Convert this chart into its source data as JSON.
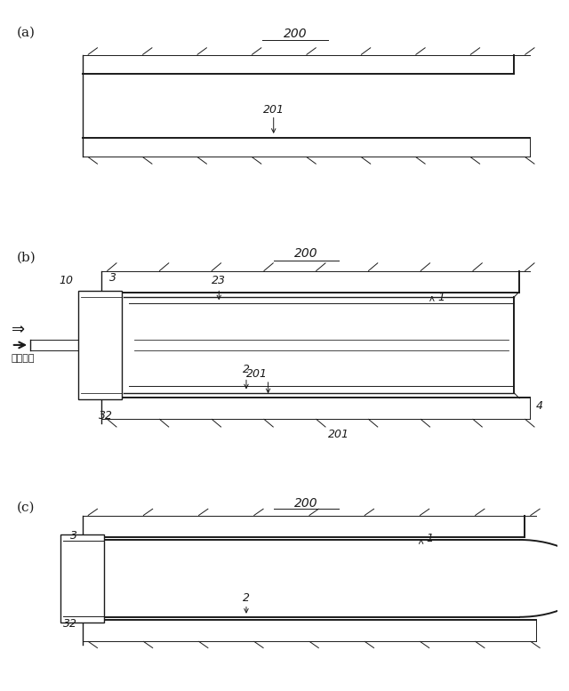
{
  "bg_color": "#ffffff",
  "line_color": "#1a1a1a",
  "fig_width": 6.4,
  "fig_height": 7.77,
  "panel_a_label": "(a)",
  "panel_b_label": "(b)",
  "panel_c_label": "(c)",
  "label_200": "200",
  "label_201": "201",
  "label_1": "1",
  "label_2": "2",
  "label_3": "3",
  "label_4": "4",
  "label_10": "10",
  "label_23": "23",
  "label_32": "32",
  "label_inject": "注水加圧"
}
